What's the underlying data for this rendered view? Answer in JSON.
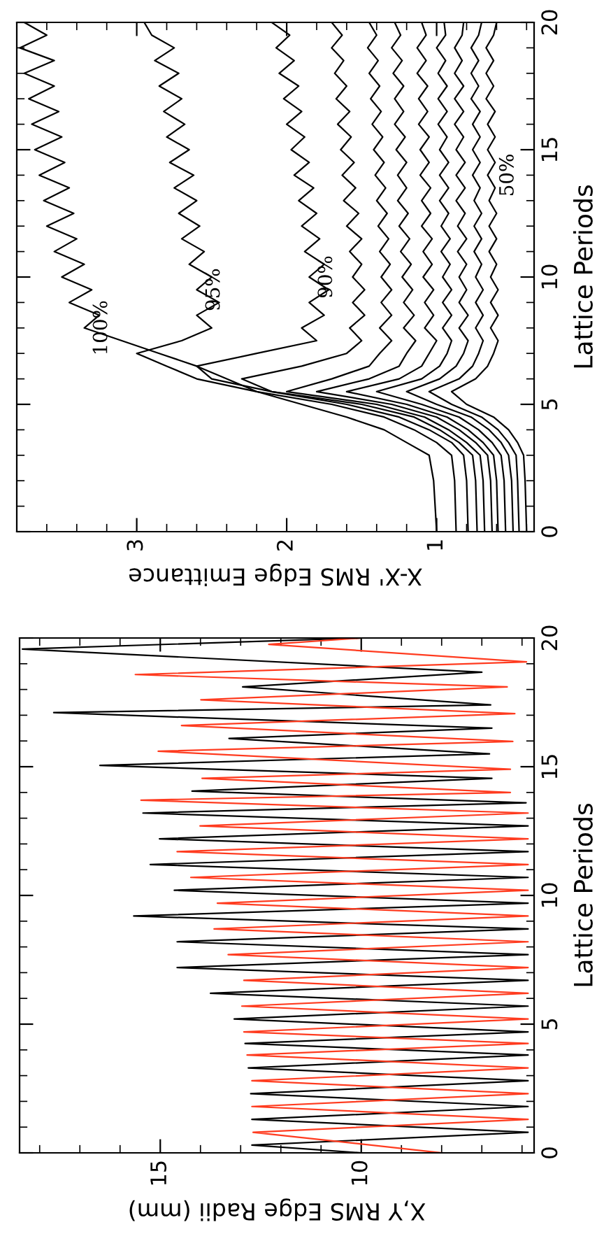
{
  "chart_data": [
    {
      "type": "line",
      "xlabel": "X-X' RMS Edge Emittance",
      "ylabel": "Lattice Periods",
      "xlim": [
        3.8,
        0.35
      ],
      "xticks": [
        1,
        2,
        3
      ],
      "ylim": [
        0,
        20
      ],
      "yticks": [
        0,
        5,
        10,
        15,
        20
      ],
      "grid": false,
      "series": [
        {
          "color": "#000000",
          "values": [
            0,
            2,
            3,
            3.5,
            4,
            4.5,
            5,
            5.5,
            6,
            6.5,
            7,
            7.5,
            8,
            8.5,
            9,
            9.5,
            10,
            10.5,
            11,
            11.5,
            12,
            12.5,
            13,
            13.5,
            14,
            14.5,
            15,
            15.5,
            16,
            16.5,
            17,
            17.5,
            18,
            18.5,
            19,
            19.5,
            20
          ],
          "x": [
            1.0,
            1.02,
            1.05,
            1.2,
            1.35,
            1.6,
            1.9,
            2.2,
            2.4,
            2.6,
            2.85,
            3.1,
            3.35,
            3.25,
            3.45,
            3.3,
            3.5,
            3.35,
            3.55,
            3.4,
            3.6,
            3.42,
            3.62,
            3.45,
            3.65,
            3.48,
            3.68,
            3.5,
            3.7,
            3.52,
            3.72,
            3.55,
            3.75,
            3.55,
            3.78,
            3.6,
            3.75
          ]
        },
        {
          "color": "#000000",
          "values": [
            0,
            2,
            3,
            3.5,
            4,
            4.5,
            5,
            5.5,
            6,
            6.5,
            7,
            7.5,
            8,
            8.5,
            9,
            9.5,
            10,
            10.5,
            11,
            11.5,
            12,
            12.5,
            13,
            13.5,
            14,
            14.5,
            15,
            15.5,
            16,
            16.5,
            17,
            17.5,
            18,
            18.5,
            19,
            19.5,
            20
          ],
          "x": [
            0.87,
            0.88,
            0.9,
            1.0,
            1.15,
            1.35,
            1.7,
            2.2,
            2.6,
            2.8,
            3.0,
            2.7,
            2.5,
            2.6,
            2.45,
            2.6,
            2.5,
            2.65,
            2.55,
            2.7,
            2.58,
            2.72,
            2.6,
            2.75,
            2.62,
            2.78,
            2.65,
            2.8,
            2.68,
            2.82,
            2.7,
            2.85,
            2.72,
            2.88,
            2.75,
            2.9,
            2.95
          ]
        },
        {
          "color": "#000000",
          "values": [
            0,
            2,
            3,
            3.5,
            4,
            4.5,
            5,
            5.5,
            6,
            6.5,
            7,
            7.5,
            8,
            8.5,
            9,
            9.5,
            10,
            10.5,
            11,
            11.5,
            12,
            12.5,
            13,
            13.5,
            14,
            14.5,
            15,
            15.5,
            16,
            16.5,
            17,
            17.5,
            18,
            18.5,
            19,
            19.5,
            20
          ],
          "x": [
            0.79,
            0.8,
            0.82,
            0.9,
            1.05,
            1.25,
            1.6,
            2.1,
            2.5,
            2.6,
            2.2,
            1.8,
            1.9,
            1.75,
            1.85,
            1.72,
            1.85,
            1.75,
            1.88,
            1.78,
            1.9,
            1.8,
            1.92,
            1.82,
            1.95,
            1.85,
            1.97,
            1.88,
            2.0,
            1.9,
            2.02,
            1.92,
            2.05,
            1.95,
            2.07,
            1.98,
            2.1
          ]
        },
        {
          "color": "#000000",
          "values": [
            0,
            2,
            3,
            3.5,
            4,
            4.5,
            5,
            5.5,
            6,
            6.5,
            7,
            7.5,
            8,
            8.5,
            9,
            9.5,
            10,
            10.5,
            11,
            11.5,
            12,
            12.5,
            13,
            13.5,
            14,
            14.5,
            15,
            15.5,
            16,
            16.5,
            17,
            17.5,
            18,
            18.5,
            19,
            19.5,
            20
          ],
          "x": [
            0.73,
            0.74,
            0.76,
            0.85,
            0.98,
            1.15,
            1.5,
            2.1,
            2.3,
            1.9,
            1.6,
            1.5,
            1.58,
            1.48,
            1.56,
            1.48,
            1.56,
            1.5,
            1.58,
            1.5,
            1.6,
            1.52,
            1.62,
            1.54,
            1.63,
            1.55,
            1.64,
            1.57,
            1.66,
            1.58,
            1.67,
            1.6,
            1.68,
            1.62,
            1.7,
            1.63,
            1.7
          ]
        },
        {
          "color": "#000000",
          "values": [
            0,
            2,
            3,
            3.5,
            4,
            4.5,
            5,
            5.5,
            6,
            6.5,
            7,
            7.5,
            8,
            8.5,
            9,
            9.5,
            10,
            10.5,
            11,
            11.5,
            12,
            12.5,
            13,
            13.5,
            14,
            14.5,
            15,
            15.5,
            16,
            16.5,
            17,
            17.5,
            18,
            18.5,
            19,
            19.5,
            20
          ],
          "x": [
            0.68,
            0.69,
            0.71,
            0.8,
            0.92,
            1.08,
            1.4,
            2.0,
            1.7,
            1.45,
            1.38,
            1.3,
            1.38,
            1.3,
            1.37,
            1.3,
            1.37,
            1.31,
            1.38,
            1.32,
            1.39,
            1.33,
            1.4,
            1.34,
            1.41,
            1.35,
            1.42,
            1.36,
            1.43,
            1.37,
            1.44,
            1.38,
            1.45,
            1.39,
            1.46,
            1.4,
            1.45
          ]
        },
        {
          "color": "#000000",
          "values": [
            0,
            2,
            3,
            3.5,
            4,
            4.5,
            5,
            5.5,
            6,
            6.5,
            7,
            7.5,
            8,
            8.5,
            9,
            9.5,
            10,
            10.5,
            11,
            11.5,
            12,
            12.5,
            13,
            13.5,
            14,
            14.5,
            15,
            15.5,
            16,
            16.5,
            17,
            17.5,
            18,
            18.5,
            19,
            19.5,
            20
          ],
          "x": [
            0.63,
            0.64,
            0.66,
            0.74,
            0.85,
            1.0,
            1.3,
            1.8,
            1.45,
            1.25,
            1.2,
            1.14,
            1.22,
            1.15,
            1.22,
            1.16,
            1.23,
            1.17,
            1.24,
            1.18,
            1.25,
            1.19,
            1.26,
            1.2,
            1.26,
            1.2,
            1.27,
            1.21,
            1.28,
            1.22,
            1.28,
            1.22,
            1.29,
            1.23,
            1.3,
            1.24,
            1.28
          ]
        },
        {
          "color": "#000000",
          "values": [
            0,
            2,
            3,
            3.5,
            4,
            4.5,
            5,
            5.5,
            6,
            6.5,
            7,
            7.5,
            8,
            8.5,
            9,
            9.5,
            10,
            10.5,
            11,
            11.5,
            12,
            12.5,
            13,
            13.5,
            14,
            14.5,
            15,
            15.5,
            16,
            16.5,
            17,
            17.5,
            18,
            18.5,
            19,
            19.5,
            20
          ],
          "x": [
            0.59,
            0.6,
            0.62,
            0.69,
            0.79,
            0.93,
            1.2,
            1.6,
            1.25,
            1.1,
            1.05,
            1.0,
            1.08,
            1.02,
            1.08,
            1.02,
            1.09,
            1.03,
            1.09,
            1.03,
            1.1,
            1.04,
            1.1,
            1.04,
            1.11,
            1.05,
            1.11,
            1.05,
            1.12,
            1.06,
            1.12,
            1.06,
            1.13,
            1.07,
            1.13,
            1.07,
            1.1
          ]
        },
        {
          "color": "#000000",
          "values": [
            0,
            2,
            3,
            3.5,
            4,
            4.5,
            5,
            5.5,
            6,
            6.5,
            7,
            7.5,
            8,
            8.5,
            9,
            9.5,
            10,
            10.5,
            11,
            11.5,
            12,
            12.5,
            13,
            13.5,
            14,
            14.5,
            15,
            15.5,
            16,
            16.5,
            17,
            17.5,
            18,
            18.5,
            19,
            19.5,
            20
          ],
          "x": [
            0.54,
            0.55,
            0.57,
            0.63,
            0.72,
            0.85,
            1.1,
            1.4,
            1.1,
            0.98,
            0.93,
            0.9,
            0.96,
            0.9,
            0.96,
            0.9,
            0.96,
            0.91,
            0.97,
            0.91,
            0.97,
            0.92,
            0.98,
            0.92,
            0.98,
            0.92,
            0.98,
            0.93,
            0.99,
            0.93,
            0.99,
            0.93,
            0.99,
            0.94,
            1.0,
            0.94,
            0.95
          ]
        },
        {
          "color": "#000000",
          "values": [
            0,
            2,
            3,
            3.5,
            4,
            4.5,
            5,
            5.5,
            6,
            6.5,
            7,
            7.5,
            8,
            8.5,
            9,
            9.5,
            10,
            10.5,
            11,
            11.5,
            12,
            12.5,
            13,
            13.5,
            14,
            14.5,
            15,
            15.5,
            16,
            16.5,
            17,
            17.5,
            18,
            18.5,
            19,
            19.5,
            20
          ],
          "x": [
            0.49,
            0.5,
            0.52,
            0.57,
            0.65,
            0.77,
            1.0,
            1.2,
            0.98,
            0.87,
            0.82,
            0.79,
            0.85,
            0.79,
            0.85,
            0.8,
            0.85,
            0.8,
            0.86,
            0.8,
            0.86,
            0.81,
            0.87,
            0.81,
            0.87,
            0.81,
            0.87,
            0.82,
            0.88,
            0.82,
            0.88,
            0.82,
            0.88,
            0.83,
            0.88,
            0.83,
            0.82
          ]
        },
        {
          "color": "#000000",
          "values": [
            0,
            2,
            3,
            3.5,
            4,
            4.5,
            5,
            5.5,
            6,
            6.5,
            7,
            7.5,
            8,
            8.5,
            9,
            9.5,
            10,
            10.5,
            11,
            11.5,
            12,
            12.5,
            13,
            13.5,
            14,
            14.5,
            15,
            15.5,
            16,
            16.5,
            17,
            17.5,
            18,
            18.5,
            19,
            19.5,
            20
          ],
          "x": [
            0.45,
            0.46,
            0.47,
            0.52,
            0.59,
            0.7,
            0.9,
            1.05,
            0.85,
            0.76,
            0.72,
            0.69,
            0.74,
            0.69,
            0.74,
            0.69,
            0.74,
            0.7,
            0.75,
            0.7,
            0.75,
            0.7,
            0.75,
            0.71,
            0.76,
            0.71,
            0.76,
            0.71,
            0.76,
            0.71,
            0.77,
            0.72,
            0.77,
            0.72,
            0.77,
            0.72,
            0.7
          ]
        },
        {
          "color": "#000000",
          "values": [
            0,
            2,
            3,
            3.5,
            4,
            4.5,
            5,
            5.5,
            6,
            6.5,
            7,
            7.5,
            8,
            8.5,
            9,
            9.5,
            10,
            10.5,
            11,
            11.5,
            12,
            12.5,
            13,
            13.5,
            14,
            14.5,
            15,
            15.5,
            16,
            16.5,
            17,
            17.5,
            18,
            18.5,
            19,
            19.5,
            20
          ],
          "x": [
            0.4,
            0.41,
            0.42,
            0.46,
            0.52,
            0.62,
            0.8,
            0.9,
            0.74,
            0.66,
            0.62,
            0.59,
            0.64,
            0.59,
            0.64,
            0.59,
            0.64,
            0.6,
            0.65,
            0.6,
            0.65,
            0.6,
            0.65,
            0.61,
            0.66,
            0.61,
            0.66,
            0.61,
            0.66,
            0.61,
            0.67,
            0.62,
            0.67,
            0.62,
            0.67,
            0.62,
            0.6
          ]
        }
      ],
      "annotations": [
        {
          "text": "100%",
          "x": 3.35,
          "y": 8
        },
        {
          "text": "95%",
          "x": 2.6,
          "y": 9.5
        },
        {
          "text": "90%",
          "x": 1.85,
          "y": 10
        },
        {
          "text": "50%",
          "x": 0.64,
          "y": 14
        }
      ]
    },
    {
      "type": "line",
      "xlabel": "X,Y RMS Edge Radii (mm)",
      "ylabel": "Lattice Periods",
      "xlim": [
        18.5,
        5.7
      ],
      "xticks": [
        10,
        15
      ],
      "ylim": [
        0,
        20
      ],
      "yticks": [
        0,
        5,
        10,
        15,
        20
      ],
      "grid": false,
      "series": [
        {
          "color": "#000000",
          "values": [
            0,
            0.3,
            0.8,
            1.3,
            1.8,
            2.3,
            2.8,
            3.3,
            3.8,
            4.25,
            4.7,
            5.2,
            5.7,
            6.2,
            6.7,
            7.2,
            7.7,
            8.2,
            8.7,
            9.2,
            9.7,
            10.2,
            10.7,
            11.2,
            11.7,
            12.2,
            12.7,
            13.2,
            13.6,
            14.05,
            14.55,
            15.05,
            15.5,
            16.1,
            16.5,
            17.1,
            17.4,
            18.1,
            18.67,
            19.57,
            20
          ],
          "x": [
            10,
            12.72,
            5.85,
            12.72,
            5.85,
            12.75,
            5.85,
            12.81,
            5.85,
            12.89,
            5.85,
            13.16,
            5.85,
            13.75,
            5.85,
            14.58,
            5.85,
            14.58,
            5.85,
            15.66,
            5.85,
            14.65,
            5.85,
            15.25,
            5.85,
            15.02,
            5.85,
            15.43,
            5.9,
            14.21,
            6.75,
            16.5,
            6.81,
            13.29,
            6.75,
            17.65,
            6.78,
            12.95,
            7.0,
            18.43,
            10
          ]
        },
        {
          "color": "#ff3b1f",
          "values": [
            0,
            0.8,
            1.3,
            1.8,
            2.3,
            2.8,
            3.3,
            3.8,
            4.25,
            4.7,
            5.2,
            5.7,
            6.2,
            6.7,
            7.2,
            7.7,
            8.2,
            8.7,
            9.2,
            9.7,
            10.2,
            10.7,
            11.2,
            11.7,
            12.2,
            12.7,
            13.2,
            13.7,
            14.0,
            14.55,
            14.9,
            15.6,
            15.98,
            16.6,
            17.06,
            17.6,
            18.1,
            18.58,
            19.07,
            19.75,
            20
          ],
          "x": [
            8,
            12.69,
            5.85,
            12.72,
            5.85,
            12.72,
            5.85,
            12.84,
            5.85,
            12.92,
            5.85,
            12.97,
            5.85,
            12.92,
            5.85,
            13.31,
            5.85,
            13.66,
            5.85,
            13.58,
            5.85,
            14.24,
            5.85,
            14.58,
            5.85,
            14.01,
            5.85,
            15.48,
            6.29,
            13.96,
            6.29,
            15.05,
            6.23,
            14.47,
            6.18,
            13.99,
            6.37,
            15.62,
            5.89,
            12.3,
            10
          ]
        }
      ]
    }
  ]
}
